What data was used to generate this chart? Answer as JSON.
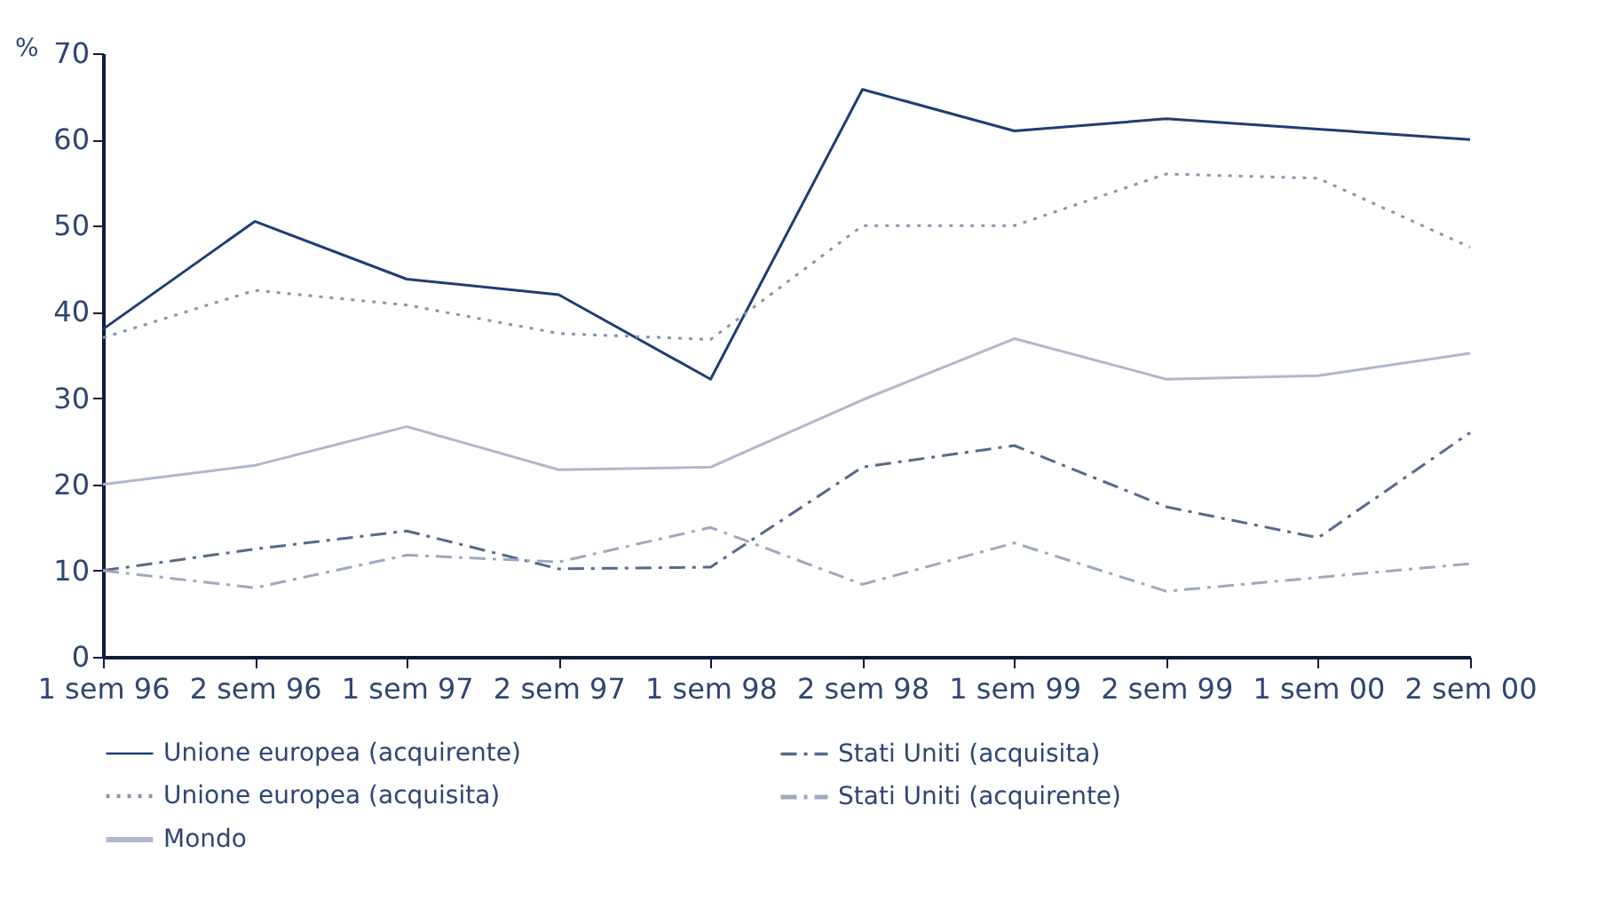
{
  "chart_data": {
    "type": "line",
    "ylabel": "%",
    "categories": [
      "1 sem 96",
      "2 sem 96",
      "1 sem 97",
      "2 sem 97",
      "1 sem 98",
      "2 sem 98",
      "1 sem 99",
      "2 sem 99",
      "1 sem 00",
      "2 sem 00"
    ],
    "ylim": [
      0,
      70
    ],
    "yticks": [
      0,
      10,
      20,
      30,
      40,
      50,
      60,
      70
    ],
    "grid": false,
    "legend": "bottom",
    "marker": "none",
    "series": [
      {
        "name": "Unione europea (acquirente)",
        "color": "#1f3d73",
        "line_style": "solid",
        "values": [
          38,
          50.5,
          43.8,
          42,
          32.2,
          65.8,
          61,
          62.4,
          61.2,
          60
        ]
      },
      {
        "name": "Stati Uniti (acquisita)",
        "color": "#56698c",
        "line_style": "dashed",
        "values": [
          10,
          12.5,
          14.6,
          10.2,
          10.4,
          22,
          24.5,
          17.4,
          13.8,
          26
        ]
      },
      {
        "name": "Unione europea (acquisita)",
        "color": "#8a94aa",
        "line_style": "dotted",
        "values": [
          37,
          42.5,
          40.8,
          37.5,
          36.8,
          50,
          50,
          56,
          55.5,
          47.5
        ]
      },
      {
        "name": "Stati Uniti (acquirente)",
        "color": "#9ea8bf",
        "line_style": "dashed",
        "values": [
          10,
          8,
          11.8,
          11,
          15,
          8.4,
          13.2,
          7.6,
          9.2,
          10.8
        ]
      },
      {
        "name": "Mondo",
        "color": "#b0b8cc",
        "line_style": "solid",
        "values": [
          20,
          22.2,
          26.7,
          21.7,
          22,
          29.8,
          36.9,
          32.2,
          32.6,
          35.2
        ]
      }
    ]
  }
}
